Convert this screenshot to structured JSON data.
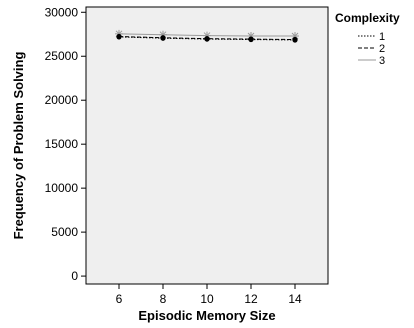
{
  "chart_data": {
    "type": "line",
    "xlabel": "Episodic Memory Size",
    "ylabel": "Frequency of Problem Solving",
    "x": [
      6,
      8,
      10,
      12,
      14
    ],
    "ylim": [
      0,
      30000
    ],
    "y_ticks": [
      0,
      5000,
      10000,
      15000,
      20000,
      25000,
      30000
    ],
    "grid": false,
    "legend_position": "right",
    "legend_title": "Complexity",
    "plot_background": "#efefef",
    "series": [
      {
        "name": "1",
        "line_style": "dotted",
        "color": "#000000",
        "marker": "circle",
        "values": [
          27200,
          27050,
          26950,
          26900,
          26850
        ]
      },
      {
        "name": "2",
        "line_style": "dashed",
        "color": "#000000",
        "marker": "circle",
        "values": [
          27250,
          27100,
          27000,
          26950,
          26900
        ]
      },
      {
        "name": "3",
        "line_style": "solid",
        "color": "#9a9a9a",
        "marker": "star",
        "values": [
          27550,
          27450,
          27350,
          27300,
          27300
        ]
      }
    ]
  }
}
